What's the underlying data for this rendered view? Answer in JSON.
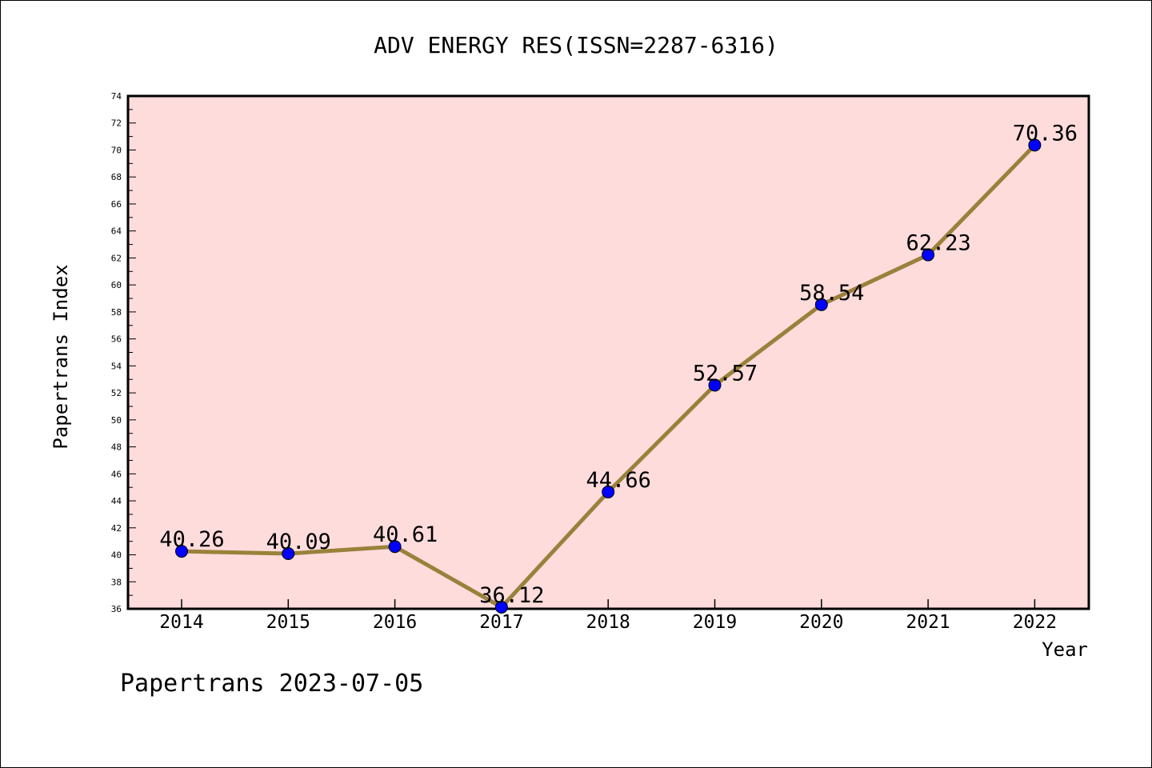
{
  "chart_data": {
    "type": "line",
    "title": "ADV ENERGY RES(ISSN=2287-6316)",
    "xlabel": "Year",
    "ylabel": "Papertrans Index",
    "x": [
      "2014",
      "2015",
      "2016",
      "2017",
      "2018",
      "2019",
      "2020",
      "2021",
      "2022"
    ],
    "series": [
      {
        "values": [
          40.26,
          40.09,
          40.61,
          36.12,
          44.66,
          52.57,
          58.54,
          62.23,
          70.36
        ],
        "data_labels": [
          "40.26",
          "40.09",
          "40.61",
          "36.12",
          "44.66",
          "52.57",
          "58.54",
          "62.23",
          "70.36"
        ],
        "line_color": "#9a813b",
        "marker_color": "#0000ff"
      }
    ],
    "ylim": [
      36,
      74
    ],
    "yticks": [
      "36",
      "38",
      "40",
      "42",
      "44",
      "46",
      "48",
      "50",
      "52",
      "54",
      "56",
      "58",
      "60",
      "62",
      "64",
      "66",
      "68",
      "70",
      "72",
      "74"
    ],
    "plot_background": "#ffdcdc",
    "grid": false,
    "legend": "none"
  },
  "footer": "Papertrans 2023-07-05"
}
